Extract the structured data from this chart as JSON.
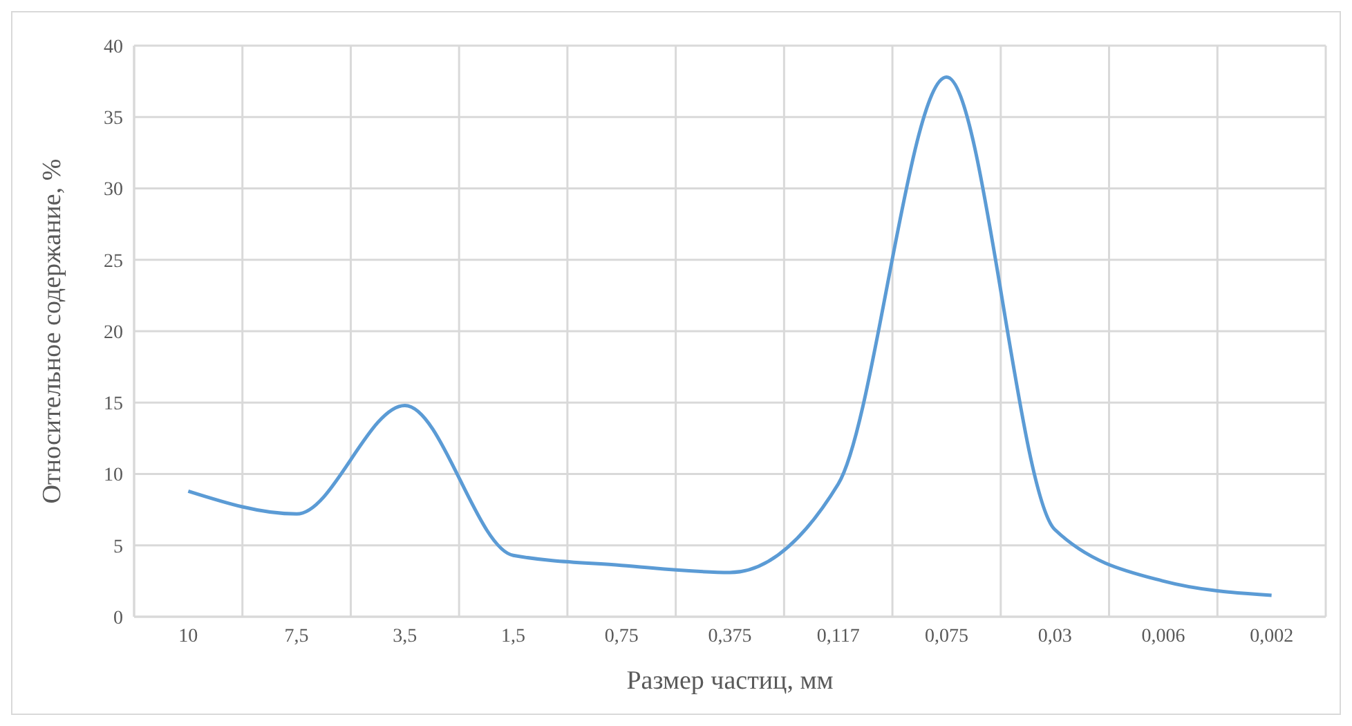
{
  "chart_data": {
    "type": "line",
    "xlabel": "Размер частиц, мм",
    "ylabel": "Относительное содержание, %",
    "categories": [
      "10",
      "7,5",
      "3,5",
      "1,5",
      "0,75",
      "0,375",
      "0,117",
      "0,075",
      "0,03",
      "0,006",
      "0,002"
    ],
    "series": [
      {
        "color": "#5b9bd5",
        "values": [
          8.8,
          7.2,
          14.8,
          4.3,
          3.6,
          3.1,
          9.3,
          37.8,
          6.1,
          2.5,
          1.5
        ]
      }
    ],
    "ylim": [
      0,
      40
    ],
    "yticks": [
      0,
      5,
      10,
      15,
      20,
      25,
      30,
      35,
      40
    ],
    "grid": true,
    "marker": "none",
    "line_style": "solid"
  }
}
